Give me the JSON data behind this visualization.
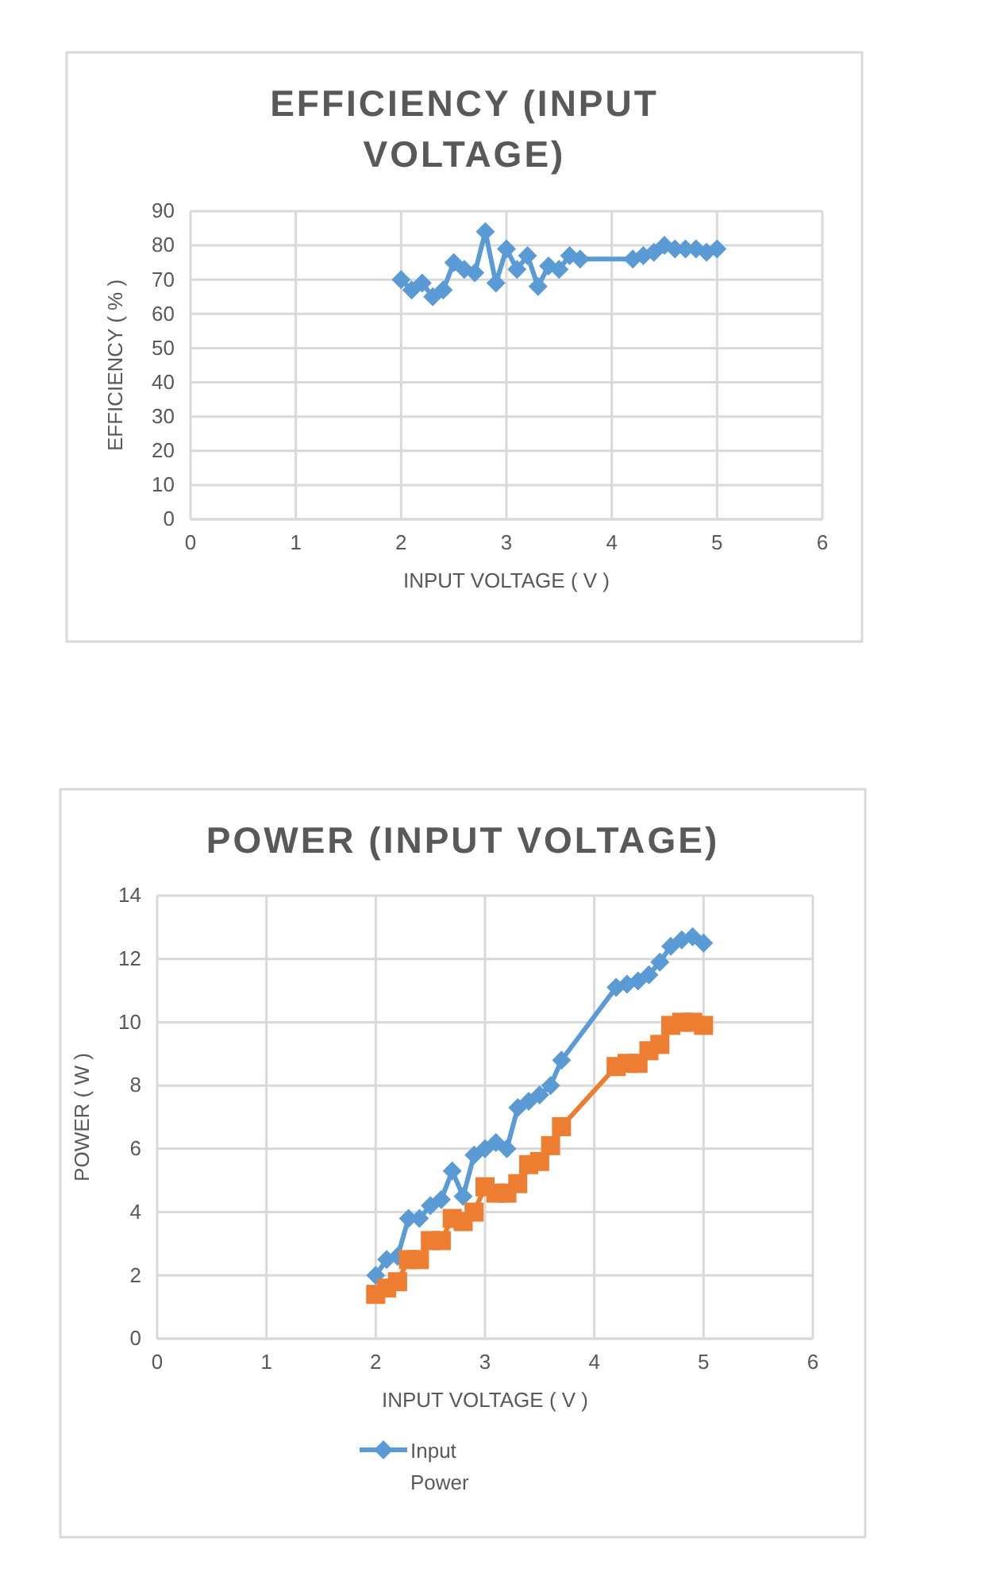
{
  "chart_data": [
    {
      "type": "line",
      "title": "EFFICIENCY (INPUT VOLTAGE)",
      "xlabel": "INPUT VOLTAGE ( V )",
      "ylabel": "EFFICIENCY ( % )",
      "xlim": [
        0,
        6
      ],
      "xticks": [
        0,
        1,
        2,
        3,
        4,
        5,
        6
      ],
      "ylim": [
        0,
        90
      ],
      "yticks": [
        0,
        10,
        20,
        30,
        40,
        50,
        60,
        70,
        80,
        90
      ],
      "grid": true,
      "legend": false,
      "series": [
        {
          "color": "#5b9bd5",
          "marker": "diamond",
          "x": [
            2.0,
            2.1,
            2.2,
            2.3,
            2.4,
            2.5,
            2.6,
            2.7,
            2.8,
            2.9,
            3.0,
            3.1,
            3.2,
            3.3,
            3.4,
            3.5,
            3.6,
            3.7,
            4.2,
            4.3,
            4.4,
            4.5,
            4.6,
            4.7,
            4.8,
            4.9,
            5.0
          ],
          "values": [
            70,
            67,
            69,
            65,
            67,
            75,
            73,
            72,
            84,
            69,
            79,
            73,
            77,
            68,
            74,
            73,
            77,
            76,
            76,
            77,
            78,
            80,
            79,
            79,
            79,
            78,
            79
          ]
        }
      ]
    },
    {
      "type": "line",
      "title": "POWER (INPUT VOLTAGE)",
      "xlabel": "INPUT VOLTAGE ( V )",
      "ylabel": "POWER ( W )",
      "xlim": [
        0,
        6
      ],
      "xticks": [
        0,
        1,
        2,
        3,
        4,
        5,
        6
      ],
      "ylim": [
        0,
        14
      ],
      "yticks": [
        0,
        2,
        4,
        6,
        8,
        10,
        12,
        14
      ],
      "grid": true,
      "legend": "bottom",
      "series": [
        {
          "name": "Input Power",
          "color": "#5b9bd5",
          "marker": "diamond",
          "x": [
            2.0,
            2.1,
            2.2,
            2.3,
            2.4,
            2.5,
            2.6,
            2.7,
            2.8,
            2.9,
            3.0,
            3.1,
            3.2,
            3.3,
            3.4,
            3.5,
            3.6,
            3.7,
            4.2,
            4.3,
            4.4,
            4.5,
            4.6,
            4.7,
            4.8,
            4.9,
            5.0
          ],
          "values": [
            2.0,
            2.5,
            2.6,
            3.8,
            3.8,
            4.2,
            4.4,
            5.3,
            4.5,
            5.8,
            6.0,
            6.2,
            6.0,
            7.3,
            7.5,
            7.7,
            8.0,
            8.8,
            11.1,
            11.2,
            11.3,
            11.5,
            11.9,
            12.4,
            12.6,
            12.7,
            12.5
          ]
        },
        {
          "color": "#ed7d31",
          "marker": "square",
          "x": [
            2.0,
            2.1,
            2.2,
            2.3,
            2.4,
            2.5,
            2.6,
            2.7,
            2.8,
            2.9,
            3.0,
            3.1,
            3.2,
            3.3,
            3.4,
            3.5,
            3.6,
            3.7,
            4.2,
            4.3,
            4.4,
            4.5,
            4.6,
            4.7,
            4.8,
            4.9,
            5.0
          ],
          "values": [
            1.4,
            1.6,
            1.8,
            2.5,
            2.5,
            3.1,
            3.1,
            3.8,
            3.7,
            4.0,
            4.8,
            4.6,
            4.6,
            4.9,
            5.5,
            5.6,
            6.1,
            6.7,
            8.6,
            8.7,
            8.7,
            9.1,
            9.3,
            9.9,
            10.0,
            10.0,
            9.9
          ]
        }
      ]
    }
  ]
}
